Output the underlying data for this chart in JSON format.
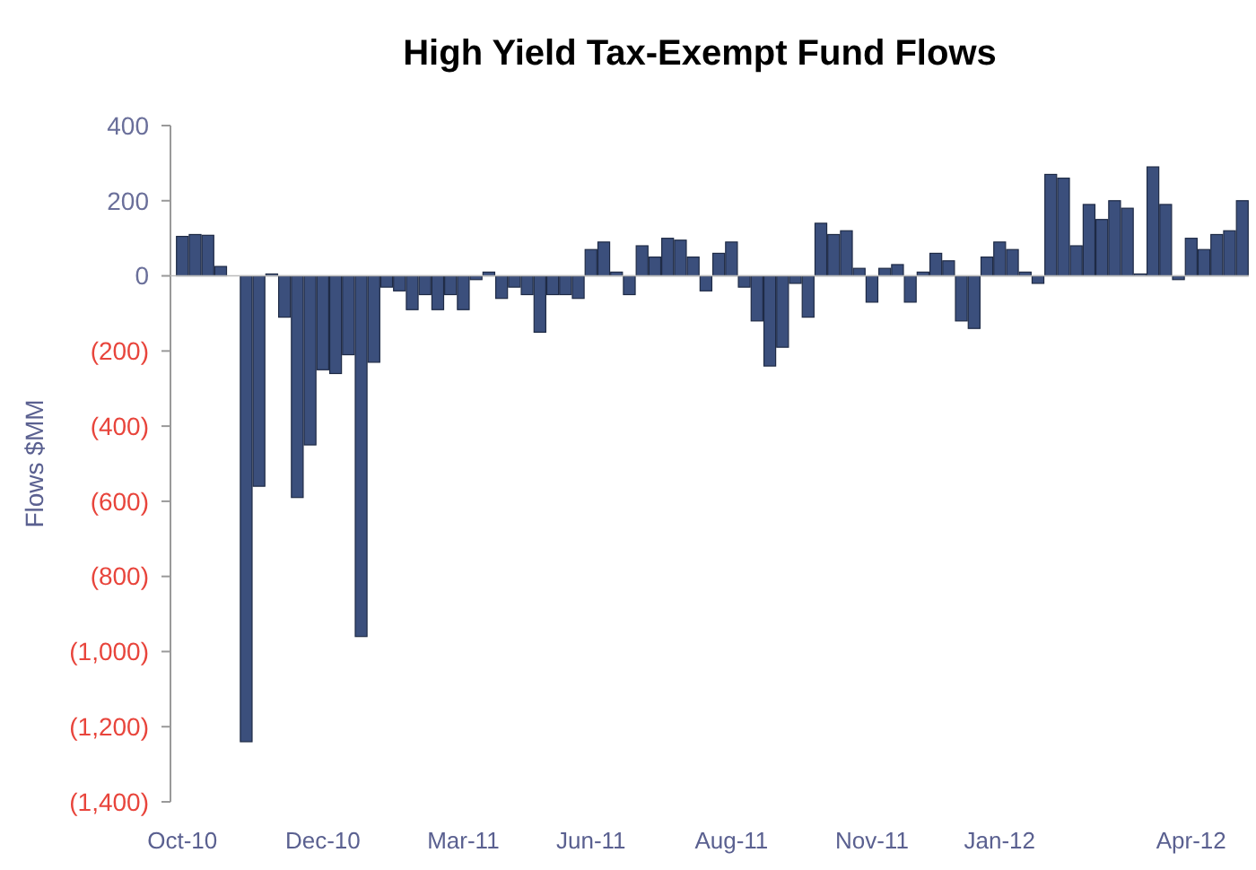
{
  "chart_data": {
    "type": "bar",
    "title": "High Yield Tax-Exempt Fund Flows",
    "ylabel": "Flows $MM",
    "categories": [
      "Oct-10",
      null,
      null,
      null,
      null,
      null,
      null,
      null,
      null,
      null,
      null,
      "Dec-10",
      null,
      null,
      null,
      null,
      null,
      null,
      null,
      null,
      null,
      null,
      "Mar-11",
      null,
      null,
      null,
      null,
      null,
      null,
      null,
      null,
      null,
      "Jun-11",
      null,
      null,
      null,
      null,
      null,
      null,
      null,
      null,
      null,
      null,
      "Aug-11",
      null,
      null,
      null,
      null,
      null,
      null,
      null,
      null,
      null,
      null,
      "Nov-11",
      null,
      null,
      null,
      null,
      null,
      null,
      null,
      null,
      null,
      "Jan-12",
      null,
      null,
      null,
      null,
      null,
      null,
      null,
      null,
      null,
      null,
      null,
      null,
      null,
      null,
      "Apr-12",
      null,
      null,
      null,
      null
    ],
    "values": [
      105,
      110,
      108,
      25,
      0,
      -1240,
      -560,
      5,
      -110,
      -590,
      -450,
      -250,
      -260,
      -210,
      -960,
      -230,
      -30,
      -40,
      -90,
      -50,
      -90,
      -50,
      -90,
      -10,
      10,
      -60,
      -30,
      -50,
      -150,
      -50,
      -50,
      -60,
      70,
      90,
      10,
      -50,
      80,
      50,
      100,
      95,
      50,
      -40,
      60,
      90,
      -30,
      -120,
      -240,
      -190,
      -20,
      -110,
      140,
      110,
      120,
      20,
      -70,
      20,
      30,
      -70,
      10,
      60,
      40,
      -120,
      -140,
      50,
      90,
      70,
      10,
      -20,
      270,
      260,
      80,
      190,
      150,
      200,
      180,
      5,
      290,
      190,
      -10,
      100,
      70,
      110,
      120,
      200
    ],
    "color": "#3b4f7c",
    "ylim": [
      -1400,
      400
    ],
    "yticks": [
      400,
      200,
      0,
      {
        "value": -200,
        "label": "(200)"
      },
      {
        "value": -400,
        "label": "(400)"
      },
      {
        "value": -600,
        "label": "(600)"
      },
      {
        "value": -800,
        "label": "(800)"
      },
      {
        "value": -1000,
        "label": "(1,000)"
      },
      {
        "value": -1200,
        "label": "(1,200)"
      },
      {
        "value": -1400,
        "label": "(1,400)"
      }
    ]
  }
}
